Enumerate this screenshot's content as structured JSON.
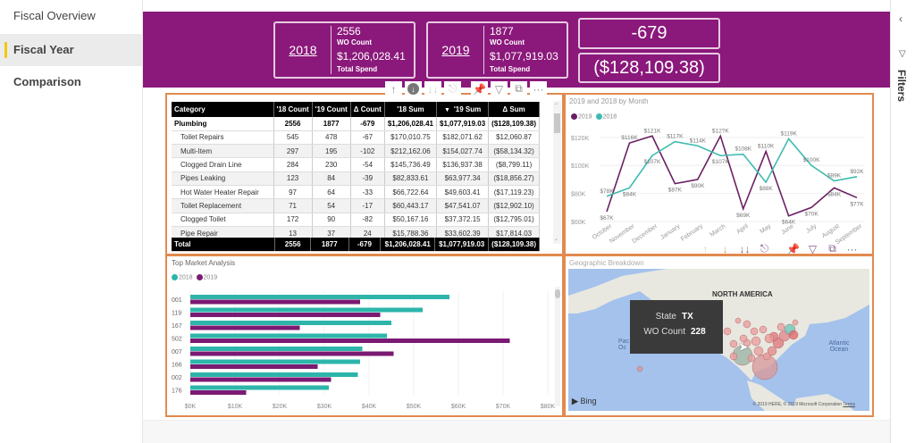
{
  "pages": {
    "items": [
      {
        "label": "Fiscal Overview",
        "active": false
      },
      {
        "label": "Fiscal Year Comparison",
        "active": true
      }
    ]
  },
  "banner": {
    "color": "#8b187b",
    "kpi_2018": {
      "year": "2018",
      "count": "2556",
      "count_label": "WO Count",
      "sum": "$1,206,028.41",
      "sum_label": "Total Spend"
    },
    "kpi_2019": {
      "year": "2019",
      "count": "1877",
      "count_label": "WO Count",
      "sum": "$1,077,919.03",
      "sum_label": "Total Spend"
    },
    "delta_count": "-679",
    "delta_sum": "($128,109.38)"
  },
  "visual_toolbar": {
    "icons": [
      "drill-up-icon",
      "drill-down-mode-icon",
      "next-level-icon",
      "expand-hierarchy-icon",
      "pin-icon",
      "filter-icon",
      "focus-mode-icon",
      "more-options-icon"
    ]
  },
  "matrix": {
    "headers": [
      "Category",
      "'18 Count",
      "'19 Count",
      "Δ Count",
      "'18 Sum",
      "'19 Sum",
      "Δ Sum"
    ],
    "sorted_column": "'19 Sum",
    "rows": [
      {
        "type": "group",
        "cells": [
          "Plumbing",
          "2556",
          "1877",
          "-679",
          "$1,206,028.41",
          "$1,077,919.03",
          "($128,109.38)"
        ]
      },
      {
        "type": "item",
        "cells": [
          "Toilet Repairs",
          "545",
          "478",
          "-67",
          "$170,010.75",
          "$182,071.62",
          "$12,060.87"
        ]
      },
      {
        "type": "item",
        "cells": [
          "Multi-Item",
          "297",
          "195",
          "-102",
          "$212,162.06",
          "$154,027.74",
          "($58,134.32)"
        ]
      },
      {
        "type": "item",
        "cells": [
          "Clogged Drain Line",
          "284",
          "230",
          "-54",
          "$145,736.49",
          "$136,937.38",
          "($8,799.11)"
        ]
      },
      {
        "type": "item",
        "cells": [
          "Pipes Leaking",
          "123",
          "84",
          "-39",
          "$82,833.61",
          "$63,977.34",
          "($18,856.27)"
        ]
      },
      {
        "type": "item",
        "cells": [
          "Hot Water Heater Repair",
          "97",
          "64",
          "-33",
          "$66,722.64",
          "$49,603.41",
          "($17,119.23)"
        ]
      },
      {
        "type": "item",
        "cells": [
          "Toilet Replacement",
          "71",
          "54",
          "-17",
          "$60,443.17",
          "$47,541.07",
          "($12,902.10)"
        ]
      },
      {
        "type": "item",
        "cells": [
          "Clogged Toilet",
          "172",
          "90",
          "-82",
          "$50,167.16",
          "$37,372.15",
          "($12,795.01)"
        ]
      },
      {
        "type": "item",
        "cells": [
          "Pipe Repair",
          "13",
          "37",
          "24",
          "$15,788.36",
          "$33,602.39",
          "$17,814.03"
        ]
      }
    ],
    "total": [
      "Total",
      "2556",
      "1877",
      "-679",
      "$1,206,028.41",
      "$1,077,919.03",
      "($128,109.38)"
    ]
  },
  "chart_data": [
    {
      "type": "line",
      "title": "2019 and 2018 by Month",
      "legend": [
        "2019",
        "2018"
      ],
      "legend_position": "top-left",
      "x": [
        "October",
        "November",
        "December",
        "January",
        "February",
        "March",
        "April",
        "May",
        "June",
        "July",
        "August",
        "September"
      ],
      "series": [
        {
          "name": "2019",
          "color": "#6b1f63",
          "values": [
            67,
            116,
            121,
            87,
            90,
            121,
            69,
            110,
            64,
            70,
            84,
            77
          ],
          "labels": [
            "$67K",
            "$116K",
            "$121K",
            "$87K",
            "$90K",
            "$12?K",
            "$69K",
            "$110K",
            "$64K",
            "$70K",
            "$84K",
            "$77K"
          ]
        },
        {
          "name": "2018",
          "color": "#3dbbb0",
          "values": [
            78,
            84,
            107,
            117,
            114,
            107,
            108,
            88,
            119,
            100,
            89,
            92
          ],
          "labels": [
            "$78K",
            "$84K",
            "$107K",
            "$117K",
            "$114K",
            "$107K",
            "$108K",
            "$88K",
            "$119K",
            "$100K",
            "$89K",
            "$92K"
          ]
        }
      ],
      "yticks": [
        "$60K",
        "$80K",
        "$100K",
        "$120K"
      ],
      "ylim": [
        60,
        125
      ],
      "yunit": "K USD",
      "grid": true
    },
    {
      "type": "bar",
      "orientation": "horizontal",
      "title": "Top Market Analysis",
      "legend": [
        "2018",
        "2019"
      ],
      "legend_position": "top-left",
      "categories": [
        "001",
        "119",
        "167",
        "502",
        "007",
        "166",
        "002",
        "176"
      ],
      "series": [
        {
          "name": "2018",
          "color": "#2db5aa",
          "values": [
            58,
            52,
            45,
            44,
            38.5,
            38,
            37.5,
            31
          ]
        },
        {
          "name": "2019",
          "color": "#7b1a73",
          "values": [
            38,
            42.5,
            24.5,
            71.5,
            45.5,
            28.5,
            31.5,
            12.5
          ]
        }
      ],
      "xticks": [
        "$0K",
        "$10K",
        "$20K",
        "$30K",
        "$40K",
        "$50K",
        "$60K",
        "$70K",
        "$80K"
      ],
      "xlim": [
        0,
        80
      ],
      "xunit": "K USD",
      "grid": true
    }
  ],
  "map": {
    "title": "Geographic Breakdown",
    "labels": {
      "continent": "NORTH AMERICA",
      "atlantic": "Atlantic Ocean",
      "pacific": "Pac Oc"
    },
    "tooltip": {
      "state_label": "State",
      "state_value": "TX",
      "count_label": "WO Count",
      "count_value": "228"
    },
    "bing": "Bing",
    "copyright": "© 2019 HERE, © 2019 Microsoft Corporation",
    "terms": "Terms"
  },
  "filters": {
    "label": "Filters"
  }
}
